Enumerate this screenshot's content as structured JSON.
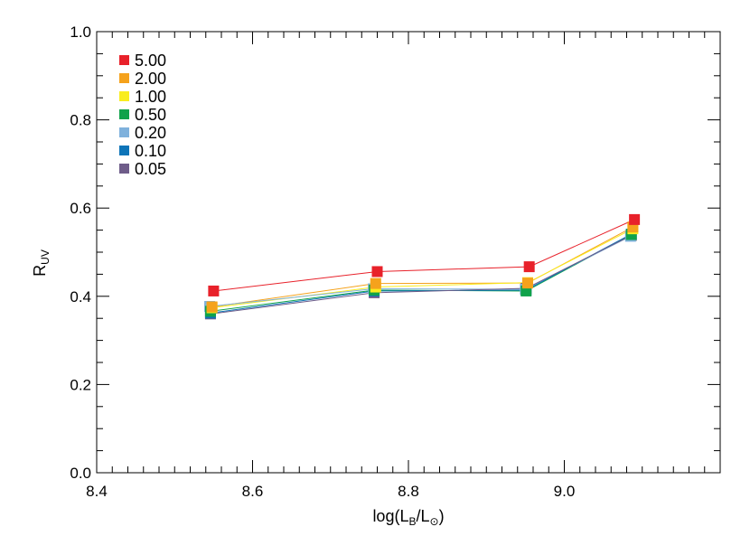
{
  "chart_data": {
    "type": "line",
    "xlabel": {
      "main": "log(L",
      "sub": "B",
      "mid": "/L",
      "sun_sub": "⊙",
      "close": ")"
    },
    "ylabel": {
      "main": "R",
      "sub": "UV"
    },
    "xlim": [
      8.4,
      9.2
    ],
    "ylim": [
      0.0,
      1.0
    ],
    "xticks": [
      8.4,
      8.6,
      8.8,
      9.0
    ],
    "xtick_labels": [
      "8.4",
      "8.6",
      "8.8",
      "9.0"
    ],
    "yticks": [
      0.0,
      0.2,
      0.4,
      0.6,
      0.8,
      1.0
    ],
    "ytick_labels": [
      "0.0",
      "0.2",
      "0.4",
      "0.6",
      "0.8",
      "1.0"
    ],
    "legend_position": "top-left",
    "grid": false,
    "series": [
      {
        "name": "5.00",
        "color": "#e8212a",
        "x": [
          8.55,
          8.76,
          8.955,
          9.09
        ],
        "y": [
          0.412,
          0.456,
          0.467,
          0.574
        ]
      },
      {
        "name": "2.00",
        "color": "#f5a21c",
        "x": [
          8.548,
          8.758,
          8.953,
          9.088
        ],
        "y": [
          0.376,
          0.429,
          0.43,
          0.557
        ]
      },
      {
        "name": "1.00",
        "color": "#f9ed1f",
        "x": [
          8.548,
          8.758,
          8.953,
          9.088
        ],
        "y": [
          0.374,
          0.421,
          0.431,
          0.553
        ]
      },
      {
        "name": "0.50",
        "color": "#10a24a",
        "x": [
          8.546,
          8.756,
          8.951,
          9.086
        ],
        "y": [
          0.366,
          0.414,
          0.412,
          0.54
        ]
      },
      {
        "name": "0.20",
        "color": "#7fb1dc",
        "x": [
          8.545,
          8.755,
          8.95,
          9.085
        ],
        "y": [
          0.377,
          0.417,
          0.416,
          0.536
        ]
      },
      {
        "name": "0.10",
        "color": "#0d74b8",
        "x": [
          8.546,
          8.756,
          8.951,
          9.086
        ],
        "y": [
          0.362,
          0.412,
          0.414,
          0.541
        ]
      },
      {
        "name": "0.05",
        "color": "#6e5c89",
        "x": [
          8.546,
          8.756,
          8.951,
          9.086
        ],
        "y": [
          0.36,
          0.408,
          0.418,
          0.538
        ]
      }
    ]
  }
}
